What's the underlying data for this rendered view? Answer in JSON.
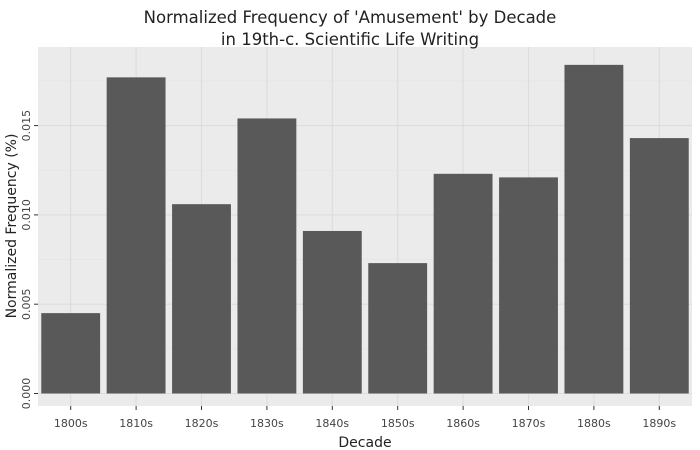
{
  "chart_data": {
    "type": "bar",
    "title_lines": [
      "Normalized Frequency of 'Amusement' by Decade",
      "in 19th-c. Scientific Life Writing"
    ],
    "xlabel": "Decade",
    "ylabel": "Normalized Frequency (%)",
    "categories": [
      "1800s",
      "1810s",
      "1820s",
      "1830s",
      "1840s",
      "1850s",
      "1860s",
      "1870s",
      "1880s",
      "1890s"
    ],
    "values": [
      0.0045,
      0.0177,
      0.0106,
      0.0154,
      0.0091,
      0.0073,
      0.0123,
      0.0121,
      0.0184,
      0.0143
    ],
    "yticks": [
      0,
      0.005,
      0.01,
      0.015
    ],
    "ytick_labels": [
      "0.000",
      "0.005",
      "0.010",
      "0.015"
    ],
    "ylim": [
      -0.0007,
      0.0194
    ],
    "grid": true,
    "colors": {
      "panel": "#ebebeb",
      "grid_major": "#dcdcdc",
      "grid_minor": "#e3e3e3",
      "bar": "#595959"
    }
  }
}
